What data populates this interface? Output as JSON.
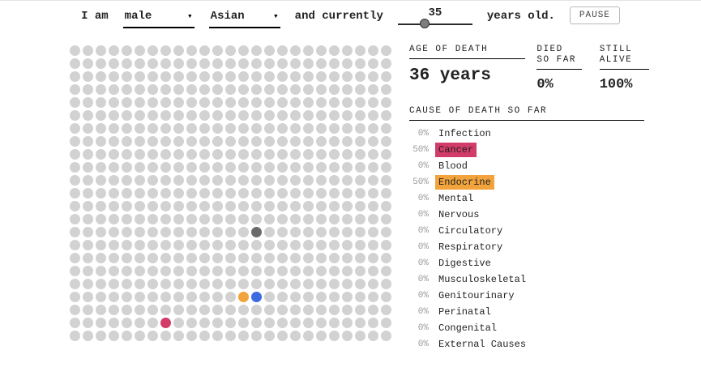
{
  "controls": {
    "i_am": "I am",
    "gender": {
      "value": "male"
    },
    "race": {
      "value": "Asian"
    },
    "and_currently": "and currently",
    "age": {
      "value": "35",
      "slider_percent": 36
    },
    "years_old": "years old.",
    "pause_label": "PAUSE"
  },
  "stats": {
    "age_of_death_label": "AGE OF DEATH",
    "age_of_death_value": "36 years",
    "died_so_far_label": "DIED SO FAR",
    "died_so_far_value": "0%",
    "still_alive_label": "STILL ALIVE",
    "still_alive_value": "100%"
  },
  "causes": {
    "title": "CAUSE OF DEATH SO FAR",
    "items": [
      {
        "pct": "0%",
        "label": "Infection"
      },
      {
        "pct": "50%",
        "label": "Cancer",
        "highlight": "#d23c69"
      },
      {
        "pct": "0%",
        "label": "Blood"
      },
      {
        "pct": "50%",
        "label": "Endocrine",
        "highlight": "#f2a33c"
      },
      {
        "pct": "0%",
        "label": "Mental"
      },
      {
        "pct": "0%",
        "label": "Nervous"
      },
      {
        "pct": "0%",
        "label": "Circulatory"
      },
      {
        "pct": "0%",
        "label": "Respiratory"
      },
      {
        "pct": "0%",
        "label": "Digestive"
      },
      {
        "pct": "0%",
        "label": "Musculoskeletal"
      },
      {
        "pct": "0%",
        "label": "Genitourinary"
      },
      {
        "pct": "0%",
        "label": "Perinatal"
      },
      {
        "pct": "0%",
        "label": "Congenital"
      },
      {
        "pct": "0%",
        "label": "External Causes"
      }
    ]
  },
  "grid": {
    "rows": 23,
    "cols": 25,
    "dot_color": "#d2d2d2",
    "active_dots": [
      {
        "row": 14,
        "col": 14,
        "color": "#6b6b6b",
        "name": "moving-dot-gray"
      },
      {
        "row": 19,
        "col": 13,
        "color": "#f2a33c",
        "name": "moving-dot-endocrine"
      },
      {
        "row": 19,
        "col": 14,
        "color": "#3f6be0",
        "name": "moving-dot-blue"
      },
      {
        "row": 21,
        "col": 7,
        "color": "#d23c69",
        "name": "moving-dot-cancer"
      }
    ]
  }
}
